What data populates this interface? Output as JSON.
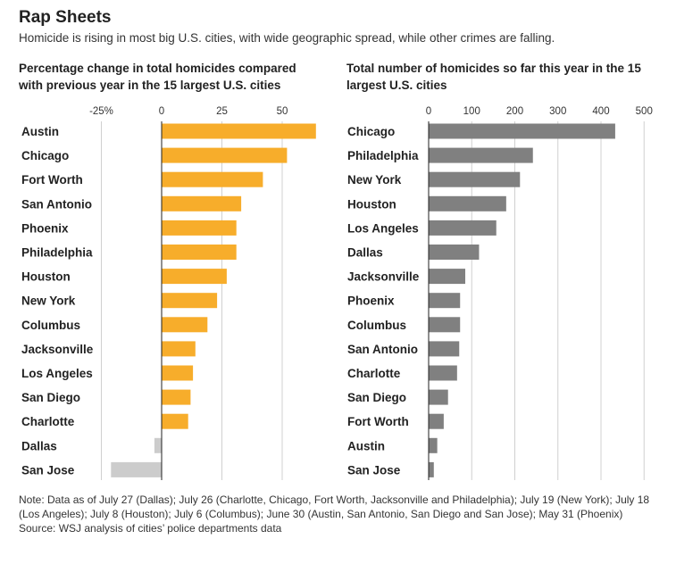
{
  "header": {
    "title": "Rap Sheets",
    "subtitle": "Homicide is rising in most big U.S. cities, with wide geographic spread, while other crimes are falling."
  },
  "colors": {
    "positive": "#f7ad2b",
    "negative": "#cccccc",
    "total": "#808080",
    "axis": "#222222",
    "grid": "#d0d0d0"
  },
  "chart_data": [
    {
      "type": "bar",
      "orientation": "horizontal",
      "title": "Percentage change in total homicides compared with previous year in the 15 largest U.S. cities",
      "xlim": [
        -25,
        60
      ],
      "ticks": [
        -25,
        0,
        25,
        50
      ],
      "tick_labels": [
        "-25%",
        "0",
        "25",
        "50"
      ],
      "categories": [
        "Austin",
        "Chicago",
        "Fort Worth",
        "San Antonio",
        "Phoenix",
        "Philadelphia",
        "Houston",
        "New York",
        "Columbus",
        "Jacksonville",
        "Los Angeles",
        "San Diego",
        "Charlotte",
        "Dallas",
        "San Jose"
      ],
      "values": [
        64,
        52,
        42,
        33,
        31,
        31,
        27,
        23,
        19,
        14,
        13,
        12,
        11,
        -3,
        -21
      ]
    },
    {
      "type": "bar",
      "orientation": "horizontal",
      "title": "Total number of homicides so far this year in the 15 largest U.S. cities",
      "xlim": [
        0,
        500
      ],
      "ticks": [
        0,
        100,
        200,
        300,
        400,
        500
      ],
      "tick_labels": [
        "0",
        "100",
        "200",
        "300",
        "400",
        "500"
      ],
      "categories": [
        "Chicago",
        "Philadelphia",
        "New York",
        "Houston",
        "Los Angeles",
        "Dallas",
        "Jacksonville",
        "Phoenix",
        "Columbus",
        "San Antonio",
        "Charlotte",
        "San Diego",
        "Fort Worth",
        "Austin",
        "San Jose"
      ],
      "values": [
        433,
        242,
        212,
        180,
        157,
        117,
        85,
        73,
        73,
        71,
        66,
        45,
        35,
        20,
        12
      ]
    }
  ],
  "footer": {
    "note": "Note: Data as of July 27 (Dallas); July 26 (Charlotte, Chicago, Fort Worth, Jacksonville and Philadelphia); July 19 (New York); July 18 (Los Angeles); July 8 (Houston); July 6 (Columbus); June 30 (Austin, San Antonio, San Diego and San Jose); May 31 (Phoenix)",
    "source": "Source: WSJ analysis of cities’ police departments data"
  }
}
